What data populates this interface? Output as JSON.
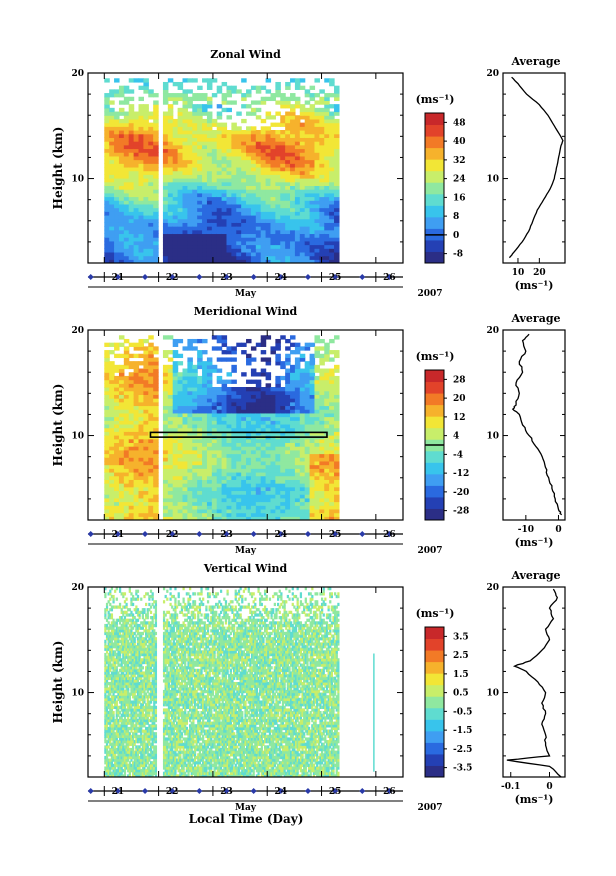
{
  "figure": {
    "xlabel": "Local Time (Day)",
    "month": "May",
    "year": "2007",
    "unit_label": "(ms⁻¹)"
  },
  "colors": {
    "cmap": [
      "#2b2e86",
      "#2440b4",
      "#2a6ae0",
      "#3f9ef2",
      "#38c4ec",
      "#5fdcd0",
      "#8fe8a0",
      "#c8ee6a",
      "#f2e636",
      "#f6b22c",
      "#f27a26",
      "#e2432a",
      "#c8282a"
    ]
  },
  "chart_data": [
    {
      "type": "heatmap",
      "title": "Zonal Wind",
      "ylabel": "Height (km)",
      "ylim": [
        2,
        20
      ],
      "yticks": [
        10,
        20
      ],
      "xlim": [
        20.7,
        26.5
      ],
      "xticks": [
        21,
        22,
        23,
        24,
        25,
        26
      ],
      "data_xrange": [
        21.0,
        25.3
      ],
      "gap_day": 22.0,
      "colorbar": {
        "levels": [
          -8,
          0,
          8,
          16,
          24,
          32,
          40,
          48
        ],
        "labels": [
          "-8",
          "0",
          "8",
          "16",
          "24",
          "32",
          "40",
          "48"
        ],
        "range": [
          -12,
          52
        ],
        "zero_line": 0
      },
      "profile": {
        "title": "Average",
        "xlim": [
          3,
          32
        ],
        "xticks": [
          10,
          20
        ],
        "xlabel": "(ms⁻¹)",
        "heights": [
          2.5,
          3,
          4,
          5,
          6,
          7,
          8,
          9,
          10,
          11,
          12,
          13,
          13.6,
          14,
          15,
          16,
          17,
          18,
          19,
          19.6
        ],
        "values": [
          6,
          8,
          12,
          15,
          17,
          19,
          22,
          25,
          27,
          28,
          29,
          30,
          31,
          30,
          27,
          24,
          20,
          14,
          10,
          7
        ]
      }
    },
    {
      "type": "heatmap",
      "title": "Meridional Wind",
      "ylabel": "Height (km)",
      "ylim": [
        2,
        20
      ],
      "yticks": [
        10,
        20
      ],
      "xlim": [
        20.7,
        26.5
      ],
      "xticks": [
        21,
        22,
        23,
        24,
        25,
        26
      ],
      "data_xrange": [
        21.0,
        25.3
      ],
      "gap_day": 22.0,
      "colorbar": {
        "levels": [
          -28,
          -20,
          -12,
          -4,
          4,
          12,
          20,
          28
        ],
        "labels": [
          "-28",
          "-20",
          "-12",
          "-4",
          "4",
          "12",
          "20",
          "28"
        ],
        "range": [
          -32,
          32
        ],
        "zero_line": 0
      },
      "profile": {
        "title": "Average",
        "xlim": [
          -17,
          2
        ],
        "xticks": [
          -10,
          0
        ],
        "xlabel": "(ms⁻¹)",
        "heights": [
          2.5,
          3,
          4,
          5,
          6,
          7,
          8,
          9,
          10,
          11,
          12,
          12.5,
          13,
          14,
          15,
          16,
          17,
          18,
          19,
          19.6
        ],
        "values": [
          1,
          0,
          -1,
          -2,
          -3,
          -4,
          -5,
          -7,
          -9,
          -11,
          -12,
          -14,
          -13,
          -12,
          -13,
          -11,
          -12,
          -10,
          -11,
          -9
        ]
      }
    },
    {
      "type": "heatmap",
      "title": "Vertical Wind",
      "ylabel": "Height (km)",
      "ylim": [
        2,
        20
      ],
      "yticks": [
        10,
        20
      ],
      "xlim": [
        20.7,
        26.5
      ],
      "xticks": [
        21,
        22,
        23,
        24,
        25,
        26
      ],
      "data_xrange": [
        21.0,
        25.3
      ],
      "gap_day": 22.0,
      "colorbar": {
        "levels": [
          -3.5,
          -2.5,
          -1.5,
          -0.5,
          0.5,
          1.5,
          2.5,
          3.5
        ],
        "labels": [
          "-3.5",
          "-2.5",
          "-1.5",
          "-0.5",
          "0.5",
          "1.5",
          "2.5",
          "3.5"
        ],
        "range": [
          -4.0,
          4.0
        ],
        "zero_line": null
      },
      "profile": {
        "title": "Average",
        "xlim": [
          -0.12,
          0.04
        ],
        "xticks": [
          -0.1,
          0.0
        ],
        "xlabel": "(ms⁻¹)",
        "heights": [
          2.0,
          3,
          3.6,
          4,
          5,
          6,
          7,
          8,
          9,
          10,
          11,
          12,
          12.5,
          13,
          14,
          15,
          16,
          17,
          18,
          19,
          19.8
        ],
        "values": [
          0.03,
          0.0,
          -0.11,
          0.0,
          -0.01,
          -0.01,
          -0.02,
          -0.01,
          -0.02,
          -0.01,
          -0.03,
          -0.06,
          -0.09,
          -0.05,
          -0.02,
          0.0,
          -0.01,
          0.01,
          0.0,
          0.02,
          0.01
        ]
      }
    }
  ]
}
